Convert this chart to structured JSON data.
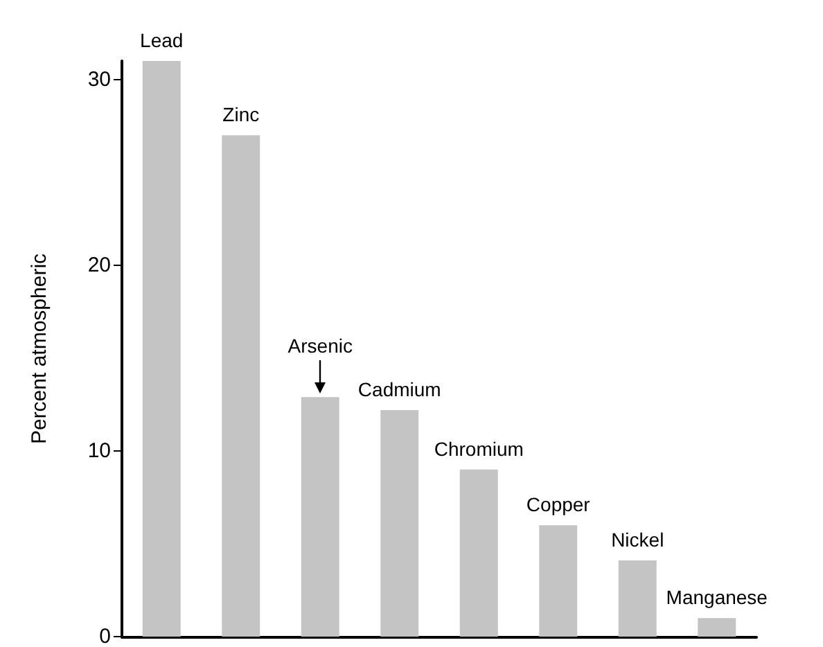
{
  "chart_data": {
    "type": "bar",
    "ylabel": "Percent atmospheric",
    "categories": [
      "Lead",
      "Zinc",
      "Arsenic",
      "Cadmium",
      "Chromium",
      "Copper",
      "Nickel",
      "Manganese"
    ],
    "values": [
      31,
      27,
      12.9,
      12.2,
      9,
      6,
      4.1,
      1
    ],
    "color": "#c4c4c4",
    "ylim": [
      0,
      31
    ],
    "yticks": [
      0,
      10,
      20,
      30
    ],
    "grid": false,
    "tick_labels": "y"
  }
}
